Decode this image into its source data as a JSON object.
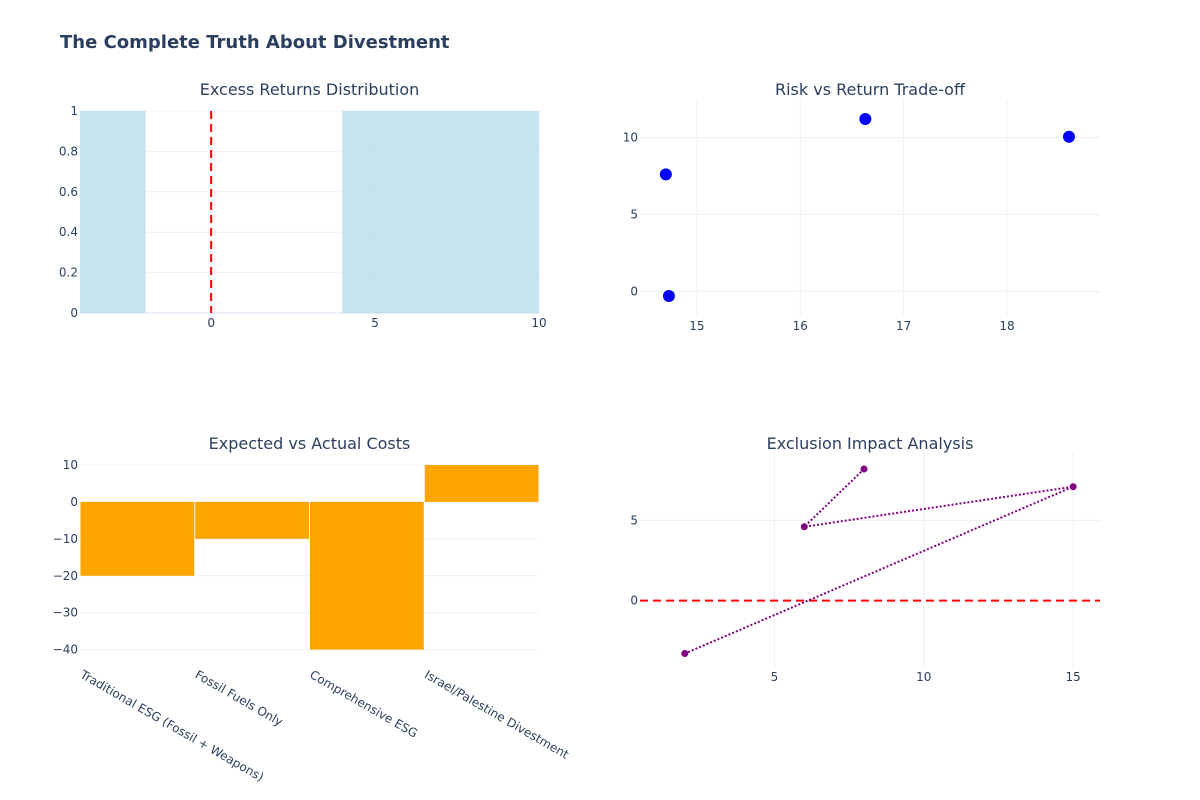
{
  "title": "The Complete Truth About Divestment",
  "chart_data": [
    {
      "type": "bar",
      "panel": "top-left",
      "title": "Excess Returns Distribution",
      "bins": [
        {
          "x0": -4,
          "x1": -2,
          "count": 1
        },
        {
          "x0": -2,
          "x1": 4,
          "count": 0
        },
        {
          "x0": 4,
          "x1": 10,
          "count": 1
        }
      ],
      "reference_line": {
        "x": 0,
        "color": "#ff0000",
        "style": "dashed"
      },
      "xlim": [
        -4,
        10
      ],
      "ylim": [
        0,
        1
      ],
      "xticks": [
        0,
        5,
        10
      ],
      "yticks": [
        0,
        0.2,
        0.4,
        0.6,
        0.8,
        1
      ],
      "xtick_labels": [
        "0",
        "5",
        "10"
      ],
      "ytick_labels": [
        "0",
        "0.2",
        "0.4",
        "0.6",
        "0.8",
        "1"
      ],
      "color": "#add8e6"
    },
    {
      "type": "scatter",
      "panel": "top-right",
      "title": "Risk vs Return Trade-off",
      "x": [
        14.7,
        14.73,
        16.63,
        18.6
      ],
      "y": [
        7.6,
        -0.3,
        11.2,
        10.05
      ],
      "xlim": [
        14.45,
        18.9
      ],
      "ylim": [
        -1.6,
        12.5
      ],
      "xticks": [
        15,
        16,
        17,
        18
      ],
      "yticks": [
        0,
        5,
        10
      ],
      "xtick_labels": [
        "15",
        "16",
        "17",
        "18"
      ],
      "ytick_labels": [
        "0",
        "5",
        "10"
      ],
      "color": "#0000ff"
    },
    {
      "type": "bar",
      "panel": "bottom-left",
      "title": "Expected vs Actual Costs",
      "categories": [
        "Traditional ESG (Fossil + Weapons)",
        "Fossil Fuels Only",
        "Comprehensive ESG",
        "Israel/Palestine Divestment"
      ],
      "values": [
        -20,
        -10,
        -40,
        10
      ],
      "ylim": [
        -42,
        10
      ],
      "yticks": [
        10,
        0,
        -10,
        -20,
        -30,
        -40
      ],
      "ytick_labels": [
        "10",
        "0",
        "−10",
        "−20",
        "−30",
        "−40"
      ],
      "color": "#ffa500"
    },
    {
      "type": "line",
      "panel": "bottom-right",
      "title": "Exclusion Impact Analysis",
      "x": [
        8,
        6,
        15,
        2
      ],
      "y": [
        8.2,
        4.6,
        7.1,
        -3.3
      ],
      "reference_line": {
        "y": 0,
        "color": "#ff0000",
        "style": "dashed"
      },
      "xlim": [
        0.5,
        15.9
      ],
      "ylim": [
        -4.2,
        9.2
      ],
      "xticks": [
        5,
        10,
        15
      ],
      "yticks": [
        0,
        5
      ],
      "xtick_labels": [
        "5",
        "10",
        "15"
      ],
      "ytick_labels": [
        "0",
        "5"
      ],
      "color": "#800080"
    }
  ]
}
